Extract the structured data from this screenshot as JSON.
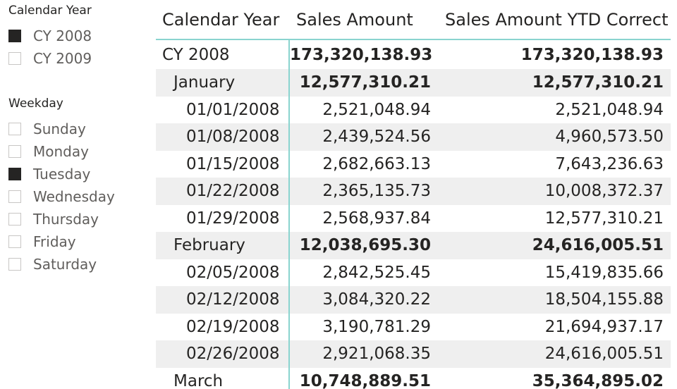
{
  "slicers": {
    "calendar_year": {
      "title": "Calendar Year",
      "items": [
        {
          "label": "CY 2008",
          "checked": true
        },
        {
          "label": "CY 2009",
          "checked": false
        }
      ]
    },
    "weekday": {
      "title": "Weekday",
      "items": [
        {
          "label": "Sunday",
          "checked": false
        },
        {
          "label": "Monday",
          "checked": false
        },
        {
          "label": "Tuesday",
          "checked": true
        },
        {
          "label": "Wednesday",
          "checked": false
        },
        {
          "label": "Thursday",
          "checked": false
        },
        {
          "label": "Friday",
          "checked": false
        },
        {
          "label": "Saturday",
          "checked": false
        }
      ]
    }
  },
  "table": {
    "columns": [
      "Calendar Year",
      "Sales Amount",
      "Sales Amount YTD Correct"
    ],
    "rows": [
      {
        "label": "CY 2008",
        "level": 0,
        "sales": "173,320,138.93",
        "ytd": "173,320,138.93"
      },
      {
        "label": "January",
        "level": 1,
        "sales": "12,577,310.21",
        "ytd": "12,577,310.21"
      },
      {
        "label": "01/01/2008",
        "level": 2,
        "sales": "2,521,048.94",
        "ytd": "2,521,048.94"
      },
      {
        "label": "01/08/2008",
        "level": 2,
        "sales": "2,439,524.56",
        "ytd": "4,960,573.50"
      },
      {
        "label": "01/15/2008",
        "level": 2,
        "sales": "2,682,663.13",
        "ytd": "7,643,236.63"
      },
      {
        "label": "01/22/2008",
        "level": 2,
        "sales": "2,365,135.73",
        "ytd": "10,008,372.37"
      },
      {
        "label": "01/29/2008",
        "level": 2,
        "sales": "2,568,937.84",
        "ytd": "12,577,310.21"
      },
      {
        "label": "February",
        "level": 1,
        "sales": "12,038,695.30",
        "ytd": "24,616,005.51"
      },
      {
        "label": "02/05/2008",
        "level": 2,
        "sales": "2,842,525.45",
        "ytd": "15,419,835.66"
      },
      {
        "label": "02/12/2008",
        "level": 2,
        "sales": "3,084,320.22",
        "ytd": "18,504,155.88"
      },
      {
        "label": "02/19/2008",
        "level": 2,
        "sales": "3,190,781.29",
        "ytd": "21,694,937.17"
      },
      {
        "label": "02/26/2008",
        "level": 2,
        "sales": "2,921,068.35",
        "ytd": "24,616,005.51"
      },
      {
        "label": "March",
        "level": 1,
        "sales": "10,748,889.51",
        "ytd": "35,364,895.02"
      }
    ]
  }
}
